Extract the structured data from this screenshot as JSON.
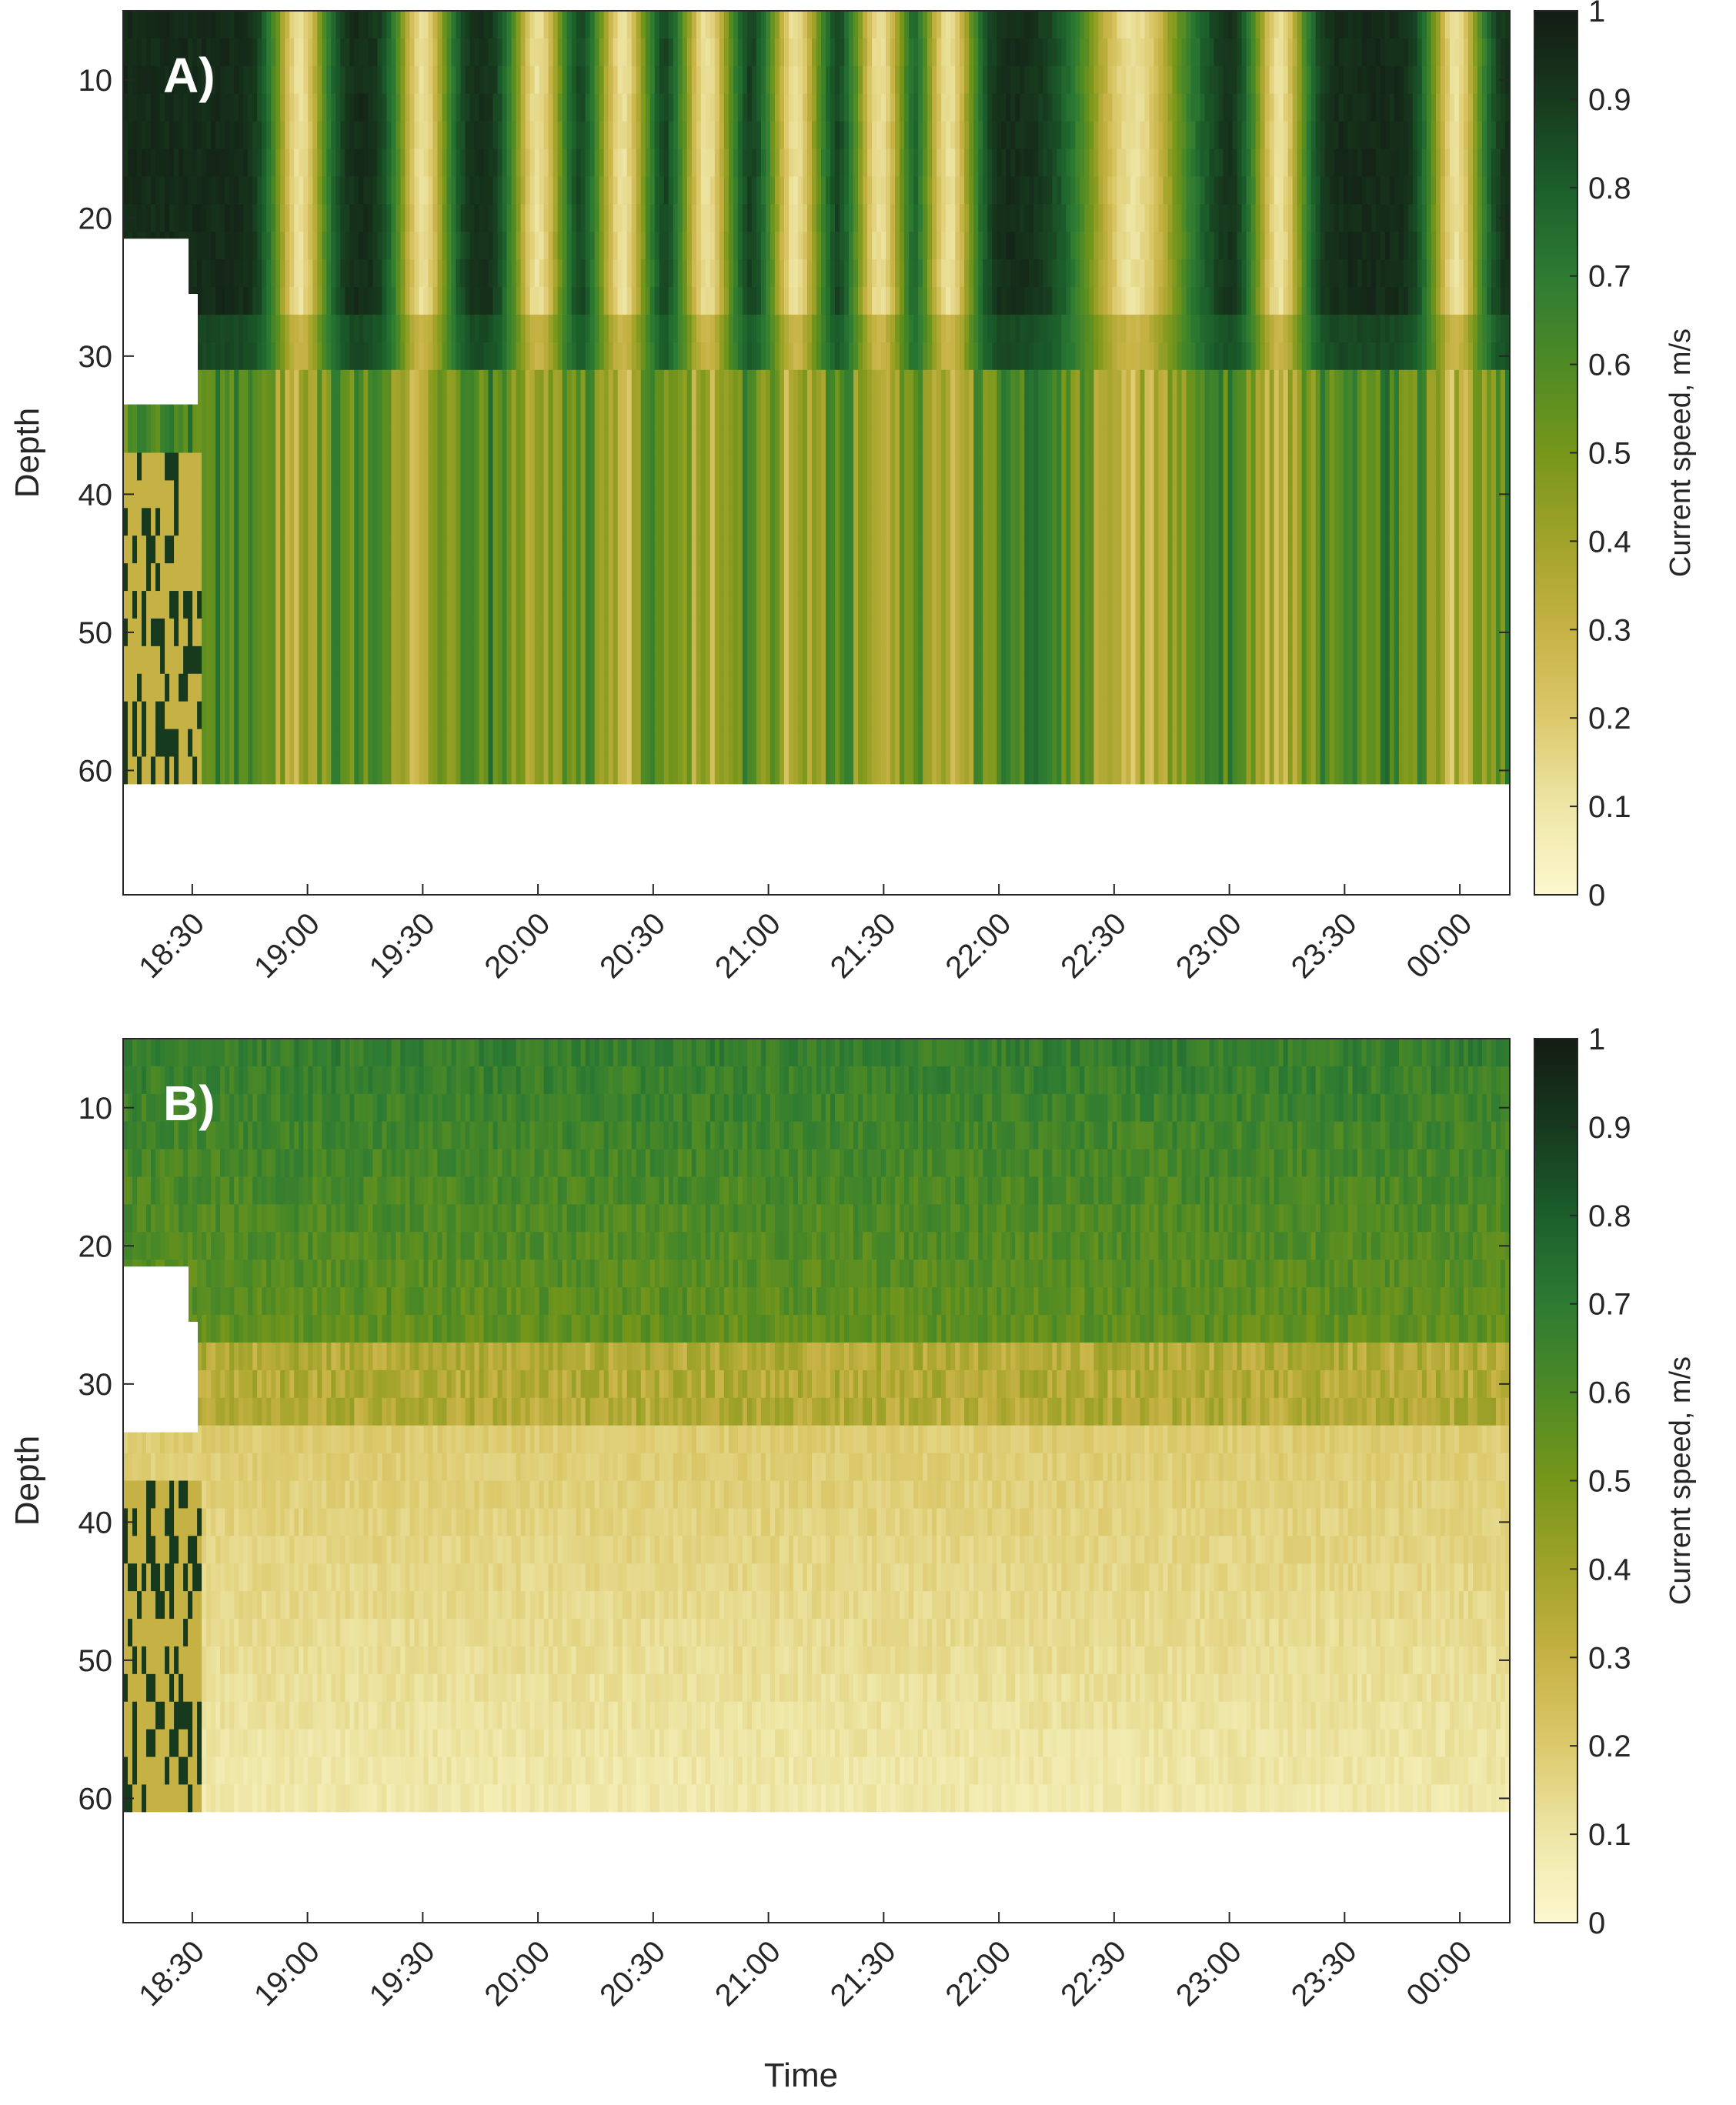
{
  "chart_data": [
    {
      "type": "heatmap",
      "panel_label": "A)",
      "xlabel": "",
      "ylabel": "Depth",
      "colorbar_label": "Current speed, m/s",
      "x_ticks": [
        "18:30",
        "19:00",
        "19:30",
        "20:00",
        "20:30",
        "21:00",
        "21:30",
        "22:00",
        "22:30",
        "23:00",
        "23:30",
        "00:00"
      ],
      "y_ticks": [
        10,
        20,
        30,
        40,
        50,
        60
      ],
      "x_range": [
        "18:12",
        "00:13"
      ],
      "y_range": [
        5,
        69
      ],
      "y_reversed": true,
      "colorbar_ticks": [
        0,
        0.1,
        0.2,
        0.3,
        0.4,
        0.5,
        0.6,
        0.7,
        0.8,
        0.9,
        1
      ],
      "color_limits": [
        0,
        1
      ],
      "description_values": {
        "bottom_of_data_depth": 61,
        "surface_layer_max_depth": 32,
        "surface_low_speed_bands_time": [
          "18:58",
          "19:30",
          "20:00",
          "20:22",
          "20:44",
          "21:07",
          "21:29",
          "21:47",
          "22:35",
          "23:13",
          "23:59"
        ],
        "surface_background_speed": 0.95,
        "band_speed": 0.12,
        "deep_speed_range": [
          0.3,
          0.75
        ]
      }
    },
    {
      "type": "heatmap",
      "panel_label": "B)",
      "xlabel": "Time",
      "ylabel": "Depth",
      "colorbar_label": "Current speed, m/s",
      "x_ticks": [
        "18:30",
        "19:00",
        "19:30",
        "20:00",
        "20:30",
        "21:00",
        "21:30",
        "22:00",
        "22:30",
        "23:00",
        "23:30",
        "00:00"
      ],
      "y_ticks": [
        10,
        20,
        30,
        40,
        50,
        60
      ],
      "x_range": [
        "18:12",
        "00:13"
      ],
      "y_range": [
        5,
        69
      ],
      "y_reversed": true,
      "colorbar_ticks": [
        0,
        0.1,
        0.2,
        0.3,
        0.4,
        0.5,
        0.6,
        0.7,
        0.8,
        0.9,
        1
      ],
      "color_limits": [
        0,
        1
      ],
      "description_values": {
        "bottom_of_data_depth": 61,
        "surface_layer_max_depth": 32,
        "surface_speed": 0.68,
        "deep_speed_range": [
          0.05,
          0.2
        ]
      }
    }
  ],
  "colormap": [
    "#fdf8cf",
    "#eee6a6",
    "#dcc96c",
    "#c6b244",
    "#a1a32a",
    "#76961a",
    "#4e8a25",
    "#2d7b33",
    "#1b5e2b",
    "#173a1e",
    "#131c14"
  ]
}
